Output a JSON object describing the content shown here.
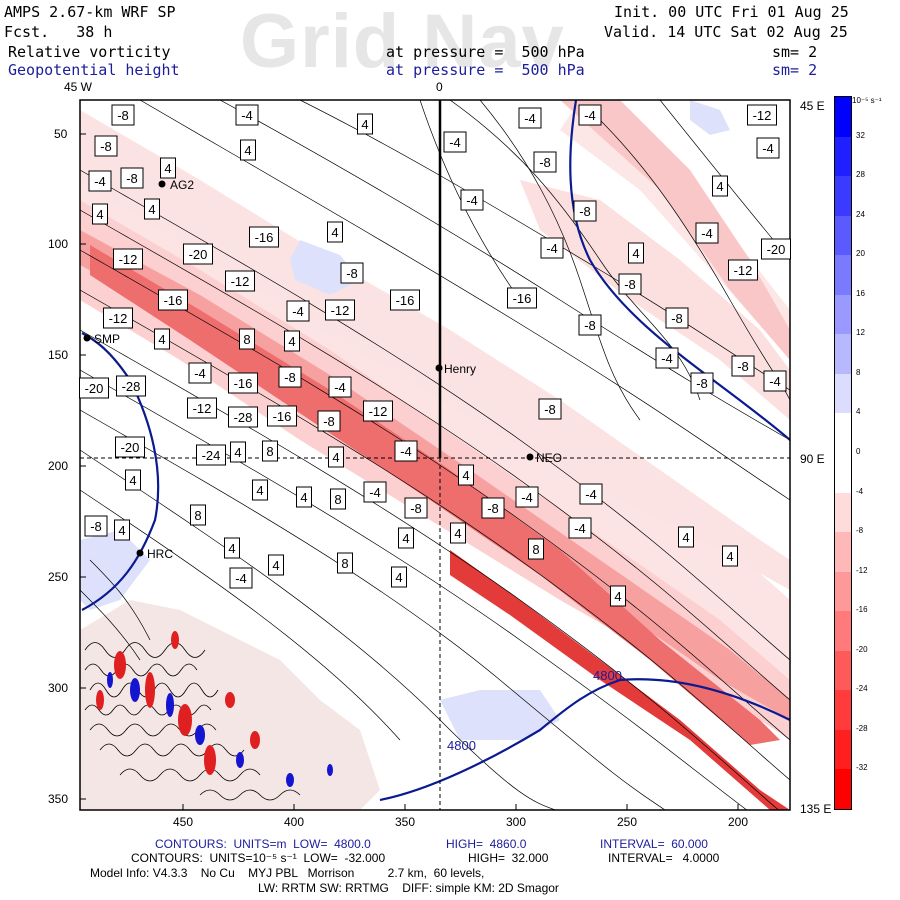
{
  "header": {
    "model_title": "AMPS 2.67-km WRF SP",
    "forecast": "Fcst.   38 h",
    "init": "Init. 00 UTC Fri 01 Aug 25",
    "valid": "Valid. 14 UTC Sat 02 Aug 25",
    "var1": "Relative vorticity",
    "var2": "Geopotential height",
    "pressure1": "at pressure =  500 hPa",
    "pressure2": "at pressure =  500 hPa",
    "sm1": "sm= 2",
    "sm2": "sm= 2",
    "watermark": "Grid Nav"
  },
  "map": {
    "top_labels": [
      "45 W",
      "0"
    ],
    "right_labels": [
      "45 E",
      "90 E",
      "135 E"
    ],
    "y_ticks": [
      "50",
      "100",
      "150",
      "200",
      "250",
      "300",
      "350"
    ],
    "x_ticks": [
      "450",
      "400",
      "350",
      "300",
      "250",
      "200"
    ],
    "stations": [
      "AG2",
      "SMP",
      "Henry",
      "NEO",
      "HRC"
    ],
    "height_contour_labels": [
      "4800",
      "4800"
    ],
    "vorticity_labels": [
      "-8",
      "-4",
      "4",
      "-4",
      "-4",
      "-12",
      "-8",
      "4",
      "-4",
      "-4",
      "4",
      "-8",
      "-4",
      "-8",
      "4",
      "4",
      "-4",
      "-8",
      "4",
      "-16",
      "4",
      "-4",
      "-20",
      "-12",
      "-20",
      "-4",
      "4",
      "-8",
      "-12",
      "-16",
      "-12",
      "-8",
      "-4",
      "-16",
      "-12",
      "-16",
      "-12",
      "-8",
      "4",
      "8",
      "-8",
      "4",
      "-4",
      "-8",
      "-4",
      "-16",
      "-8",
      "-4",
      "-8",
      "-4",
      "-20",
      "-28",
      "-12",
      "-8",
      "-12",
      "-28",
      "-16",
      "-8",
      "-20",
      "-24",
      "4",
      "8",
      "4",
      "-4",
      "4",
      "4",
      "4",
      "4",
      "8",
      "-4",
      "-4",
      "-4",
      "-8",
      "-8",
      "-4",
      "-8",
      "4",
      "8",
      "4",
      "4",
      "8",
      "4",
      "4",
      "4",
      "4",
      "8",
      "-4",
      "4",
      "4",
      "8"
    ]
  },
  "colorbar": {
    "unit": "10⁻⁵ s⁻¹",
    "labels": [
      "32",
      "28",
      "24",
      "20",
      "16",
      "12",
      "8",
      "4",
      "0",
      "-4",
      "-8",
      "-12",
      "-16",
      "-20",
      "-24",
      "-28",
      "-32"
    ],
    "colors_top_to_bottom": [
      "#0000ff",
      "#1f1fff",
      "#3b3bff",
      "#5a5aff",
      "#7a7aff",
      "#9999ff",
      "#b8b8ff",
      "#dcdcff",
      "#ffffff",
      "#ffffff",
      "#ffdcdc",
      "#ffb8b8",
      "#ff9999",
      "#ff7a7a",
      "#ff5a5a",
      "#ff3b3b",
      "#ff1f1f",
      "#ff0000"
    ]
  },
  "footer": {
    "line1_a": "CONTOURS:  UNITS=m  LOW=  4800.0",
    "line1_b": "HIGH=  4860.0",
    "line1_c": "INTERVAL=  60.000",
    "line2_a": "CONTOURS:  UNITS=10⁻⁵ s⁻¹  LOW=  -32.000",
    "line2_b": "HIGH=  32.000",
    "line2_c": "INTERVAL=   4.0000",
    "line3": "Model Info: V4.3.3    No Cu    MYJ PBL   Morrison          2.7 km,  60 levels,",
    "line4": "LW: RRTM SW: RRTMG    DIFF: simple KM: 2D Smagor"
  }
}
